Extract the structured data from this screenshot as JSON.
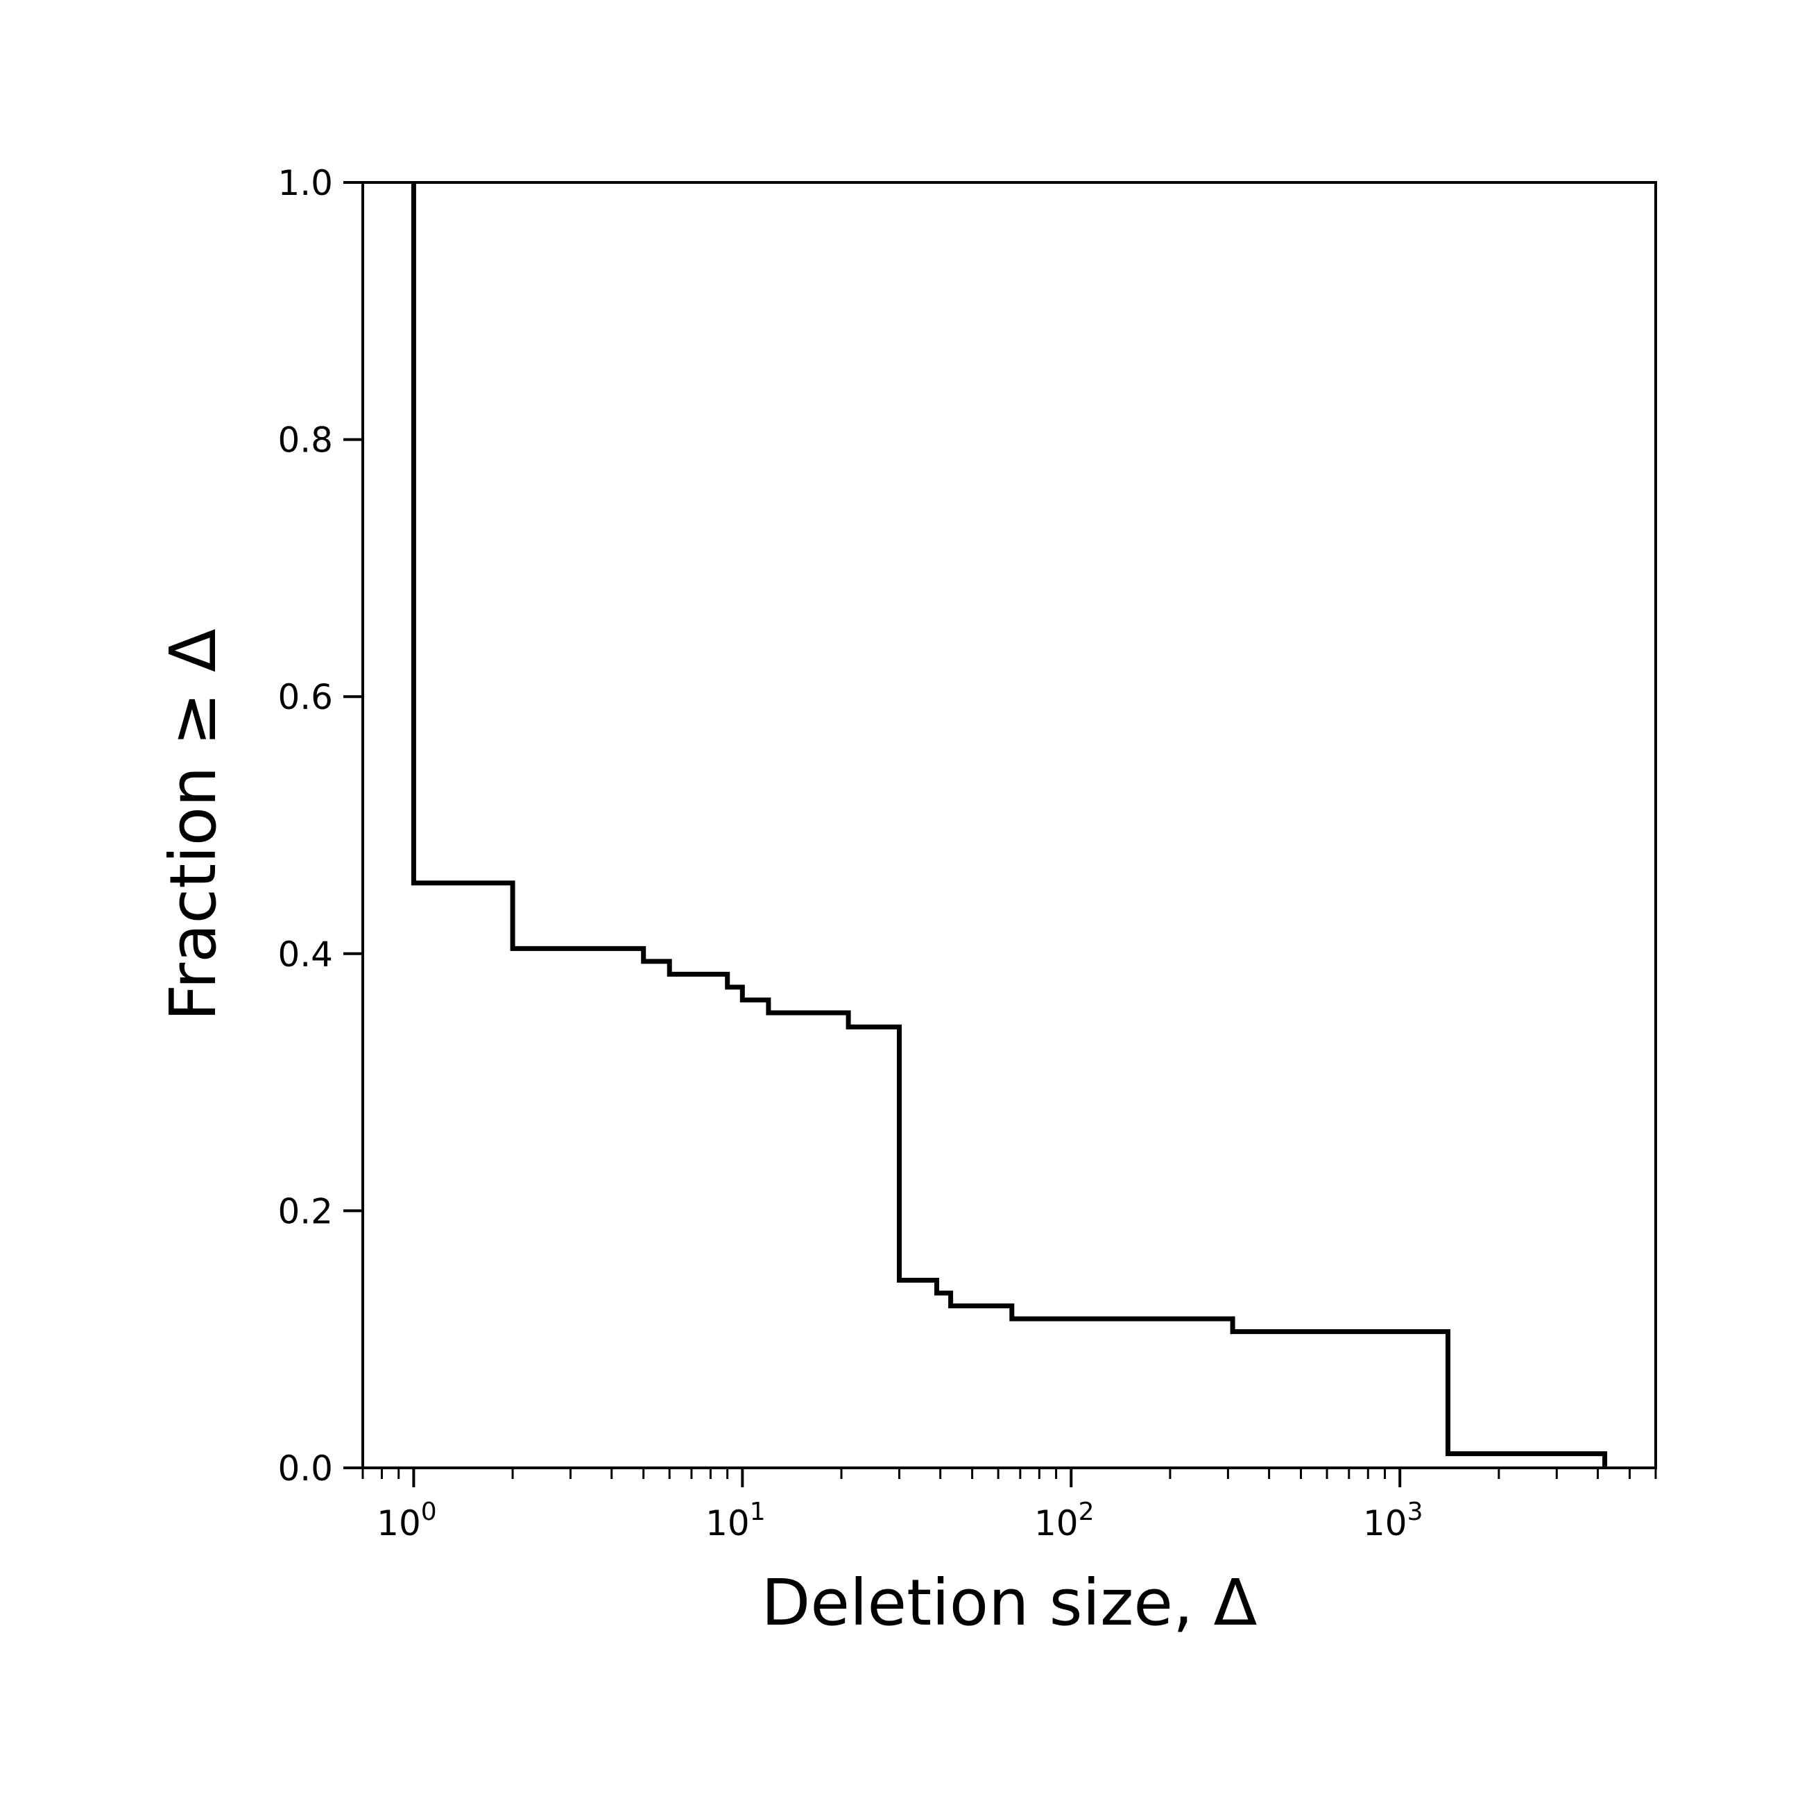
{
  "chart_data": {
    "type": "line",
    "style": "step",
    "xlabel": "Deletion size, Δ",
    "ylabel": "Fraction  ≥ Δ",
    "xscale": "log",
    "xlim": [
      0.7,
      6000
    ],
    "ylim": [
      0.0,
      1.0
    ],
    "grid": false,
    "legend": "none",
    "line_color": "#000000",
    "x_major_ticks": [
      {
        "base": "10",
        "exp": "0",
        "value": 1
      },
      {
        "base": "10",
        "exp": "1",
        "value": 10
      },
      {
        "base": "10",
        "exp": "2",
        "value": 100
      },
      {
        "base": "10",
        "exp": "3",
        "value": 1000
      }
    ],
    "y_ticks": [
      {
        "label": "0.0",
        "value": 0.0
      },
      {
        "label": "0.2",
        "value": 0.2
      },
      {
        "label": "0.4",
        "value": 0.4
      },
      {
        "label": "0.6",
        "value": 0.6
      },
      {
        "label": "0.8",
        "value": 0.8
      },
      {
        "label": "1.0",
        "value": 1.0
      }
    ],
    "series": [
      {
        "x": [
          1,
          1,
          2,
          2,
          5,
          5,
          6,
          6,
          9,
          9,
          10,
          10,
          12,
          12,
          21,
          21,
          30,
          30,
          39,
          39,
          43,
          43,
          66,
          66,
          310,
          310,
          1400,
          1400,
          4200,
          4200
        ],
        "y": [
          1.0,
          0.455,
          0.455,
          0.404,
          0.404,
          0.394,
          0.394,
          0.384,
          0.384,
          0.374,
          0.374,
          0.364,
          0.364,
          0.354,
          0.354,
          0.343,
          0.343,
          0.146,
          0.146,
          0.136,
          0.136,
          0.126,
          0.126,
          0.116,
          0.116,
          0.106,
          0.106,
          0.011,
          0.011,
          0.0
        ]
      }
    ]
  }
}
